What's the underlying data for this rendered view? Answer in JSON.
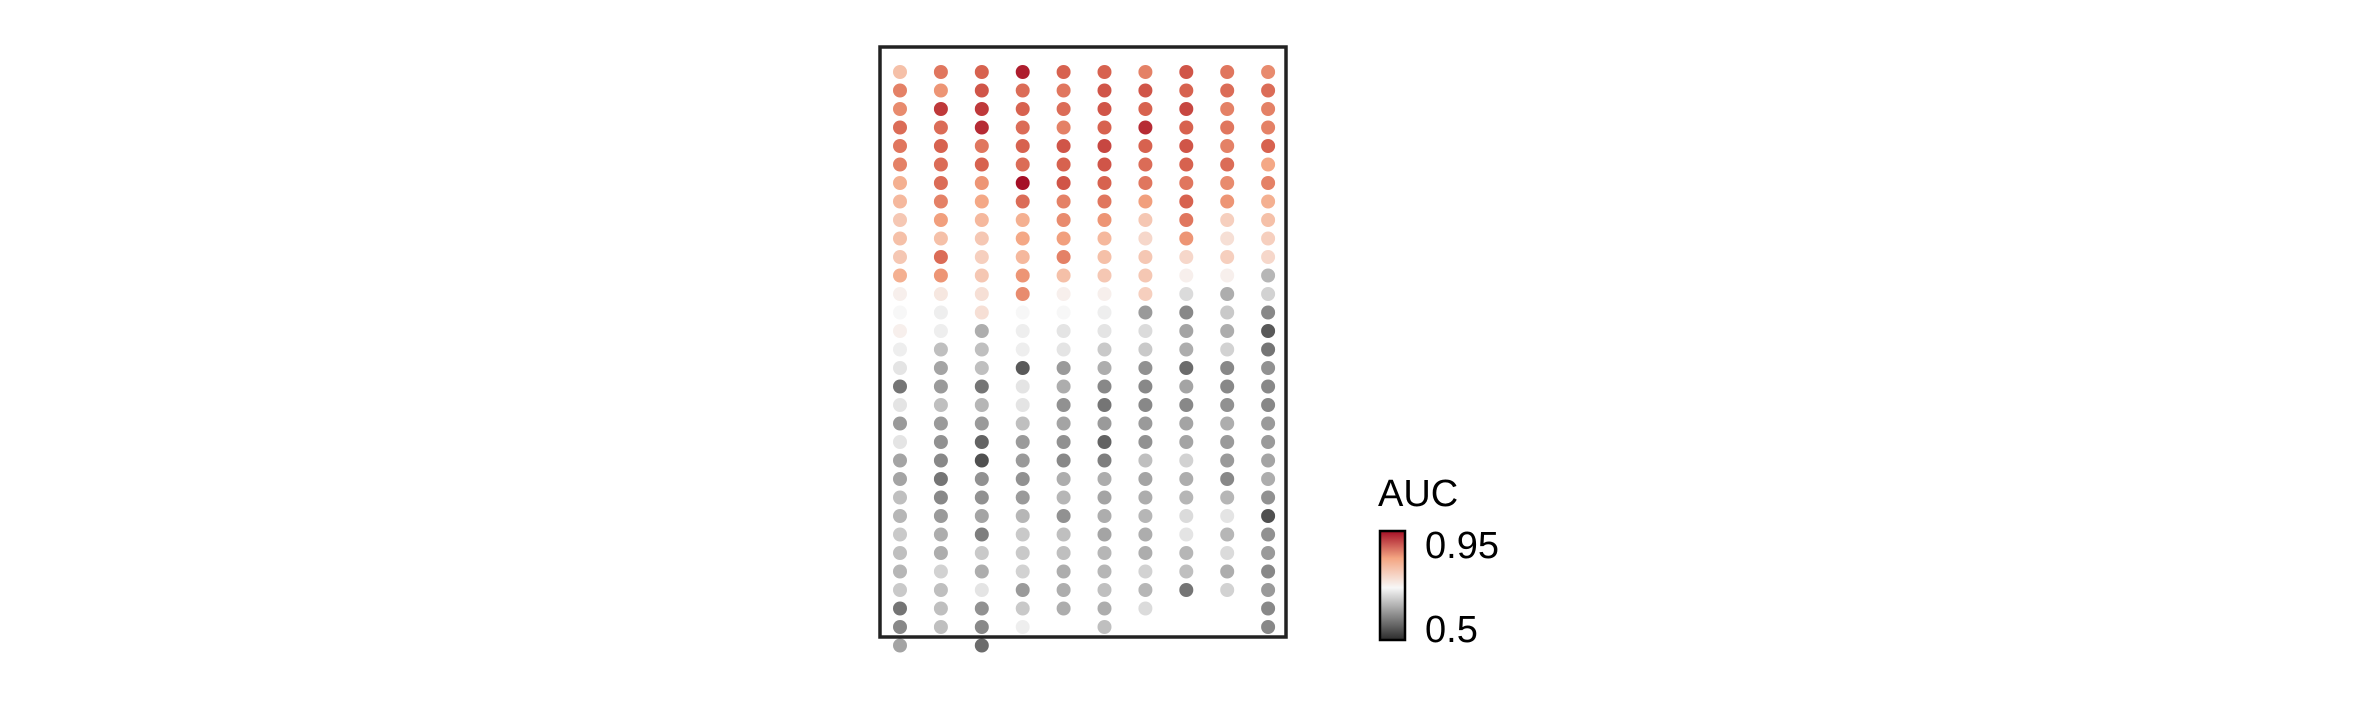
{
  "chart_data": {
    "type": "scatter",
    "title": "",
    "xlabel": "",
    "ylabel": "",
    "n_columns": 10,
    "n_rows": 31,
    "color_scale": {
      "title": "AUC",
      "min_label": "0.5",
      "max_label": "0.95",
      "min": 0.5,
      "mid": 0.72,
      "max": 0.95,
      "low_color": "#2b2b2b",
      "mid_color": "#f7f7f7",
      "high_color": "#a50f26"
    },
    "columns": [
      [
        0.79,
        0.86,
        0.85,
        0.88,
        0.87,
        0.86,
        0.81,
        0.8,
        0.78,
        0.79,
        0.78,
        0.81,
        0.73,
        0.72,
        0.73,
        0.71,
        0.7,
        0.58,
        0.7,
        0.62,
        0.7,
        0.63,
        0.63,
        0.66,
        0.65,
        0.67,
        0.66,
        0.65,
        0.67,
        0.58,
        0.6,
        0.63
      ],
      [
        0.87,
        0.84,
        0.92,
        0.88,
        0.89,
        0.88,
        0.88,
        0.86,
        0.83,
        0.79,
        0.88,
        0.84,
        0.74,
        0.71,
        0.71,
        0.66,
        0.63,
        0.62,
        0.66,
        0.62,
        0.61,
        0.6,
        0.58,
        0.6,
        0.62,
        0.64,
        0.64,
        0.68,
        0.66,
        0.66,
        0.66
      ],
      [
        0.89,
        0.9,
        0.92,
        0.93,
        0.87,
        0.89,
        0.84,
        0.82,
        0.8,
        0.78,
        0.77,
        0.78,
        0.75,
        0.75,
        0.64,
        0.66,
        0.66,
        0.58,
        0.65,
        0.62,
        0.56,
        0.54,
        0.61,
        0.61,
        0.63,
        0.59,
        0.67,
        0.64,
        0.7,
        0.61,
        0.6,
        0.57
      ],
      [
        0.94,
        0.88,
        0.89,
        0.88,
        0.89,
        0.88,
        0.95,
        0.88,
        0.81,
        0.82,
        0.8,
        0.84,
        0.85,
        0.72,
        0.71,
        0.71,
        0.55,
        0.7,
        0.7,
        0.66,
        0.62,
        0.62,
        0.61,
        0.62,
        0.65,
        0.67,
        0.67,
        0.68,
        0.62,
        0.67,
        0.71
      ],
      [
        0.89,
        0.87,
        0.88,
        0.86,
        0.9,
        0.89,
        0.9,
        0.86,
        0.85,
        0.83,
        0.86,
        0.79,
        0.73,
        0.72,
        0.7,
        0.7,
        0.62,
        0.64,
        0.61,
        0.63,
        0.61,
        0.6,
        0.64,
        0.65,
        0.61,
        0.66,
        0.66,
        0.64,
        0.64,
        0.64
      ],
      [
        0.89,
        0.9,
        0.9,
        0.89,
        0.91,
        0.9,
        0.89,
        0.87,
        0.84,
        0.8,
        0.79,
        0.78,
        0.73,
        0.71,
        0.7,
        0.67,
        0.64,
        0.6,
        0.58,
        0.62,
        0.56,
        0.59,
        0.64,
        0.63,
        0.64,
        0.63,
        0.65,
        0.65,
        0.66,
        0.64,
        0.66
      ],
      [
        0.86,
        0.9,
        0.89,
        0.93,
        0.89,
        0.88,
        0.87,
        0.83,
        0.78,
        0.76,
        0.78,
        0.78,
        0.77,
        0.62,
        0.69,
        0.67,
        0.61,
        0.6,
        0.6,
        0.62,
        0.61,
        0.66,
        0.63,
        0.64,
        0.65,
        0.64,
        0.64,
        0.68,
        0.65,
        0.69
      ],
      [
        0.9,
        0.89,
        0.91,
        0.89,
        0.9,
        0.89,
        0.87,
        0.89,
        0.87,
        0.84,
        0.76,
        0.73,
        0.69,
        0.6,
        0.63,
        0.64,
        0.57,
        0.63,
        0.6,
        0.63,
        0.63,
        0.68,
        0.64,
        0.65,
        0.69,
        0.7,
        0.65,
        0.66,
        0.58
      ],
      [
        0.87,
        0.88,
        0.86,
        0.87,
        0.86,
        0.88,
        0.85,
        0.84,
        0.77,
        0.75,
        0.77,
        0.73,
        0.64,
        0.67,
        0.64,
        0.68,
        0.6,
        0.6,
        0.61,
        0.64,
        0.62,
        0.62,
        0.6,
        0.65,
        0.7,
        0.65,
        0.69,
        0.64,
        0.68
      ],
      [
        0.85,
        0.88,
        0.86,
        0.86,
        0.89,
        0.82,
        0.86,
        0.81,
        0.79,
        0.77,
        0.76,
        0.65,
        0.68,
        0.6,
        0.55,
        0.58,
        0.61,
        0.6,
        0.6,
        0.62,
        0.62,
        0.63,
        0.64,
        0.61,
        0.54,
        0.61,
        0.62,
        0.6,
        0.62,
        0.6,
        0.6
      ]
    ]
  }
}
